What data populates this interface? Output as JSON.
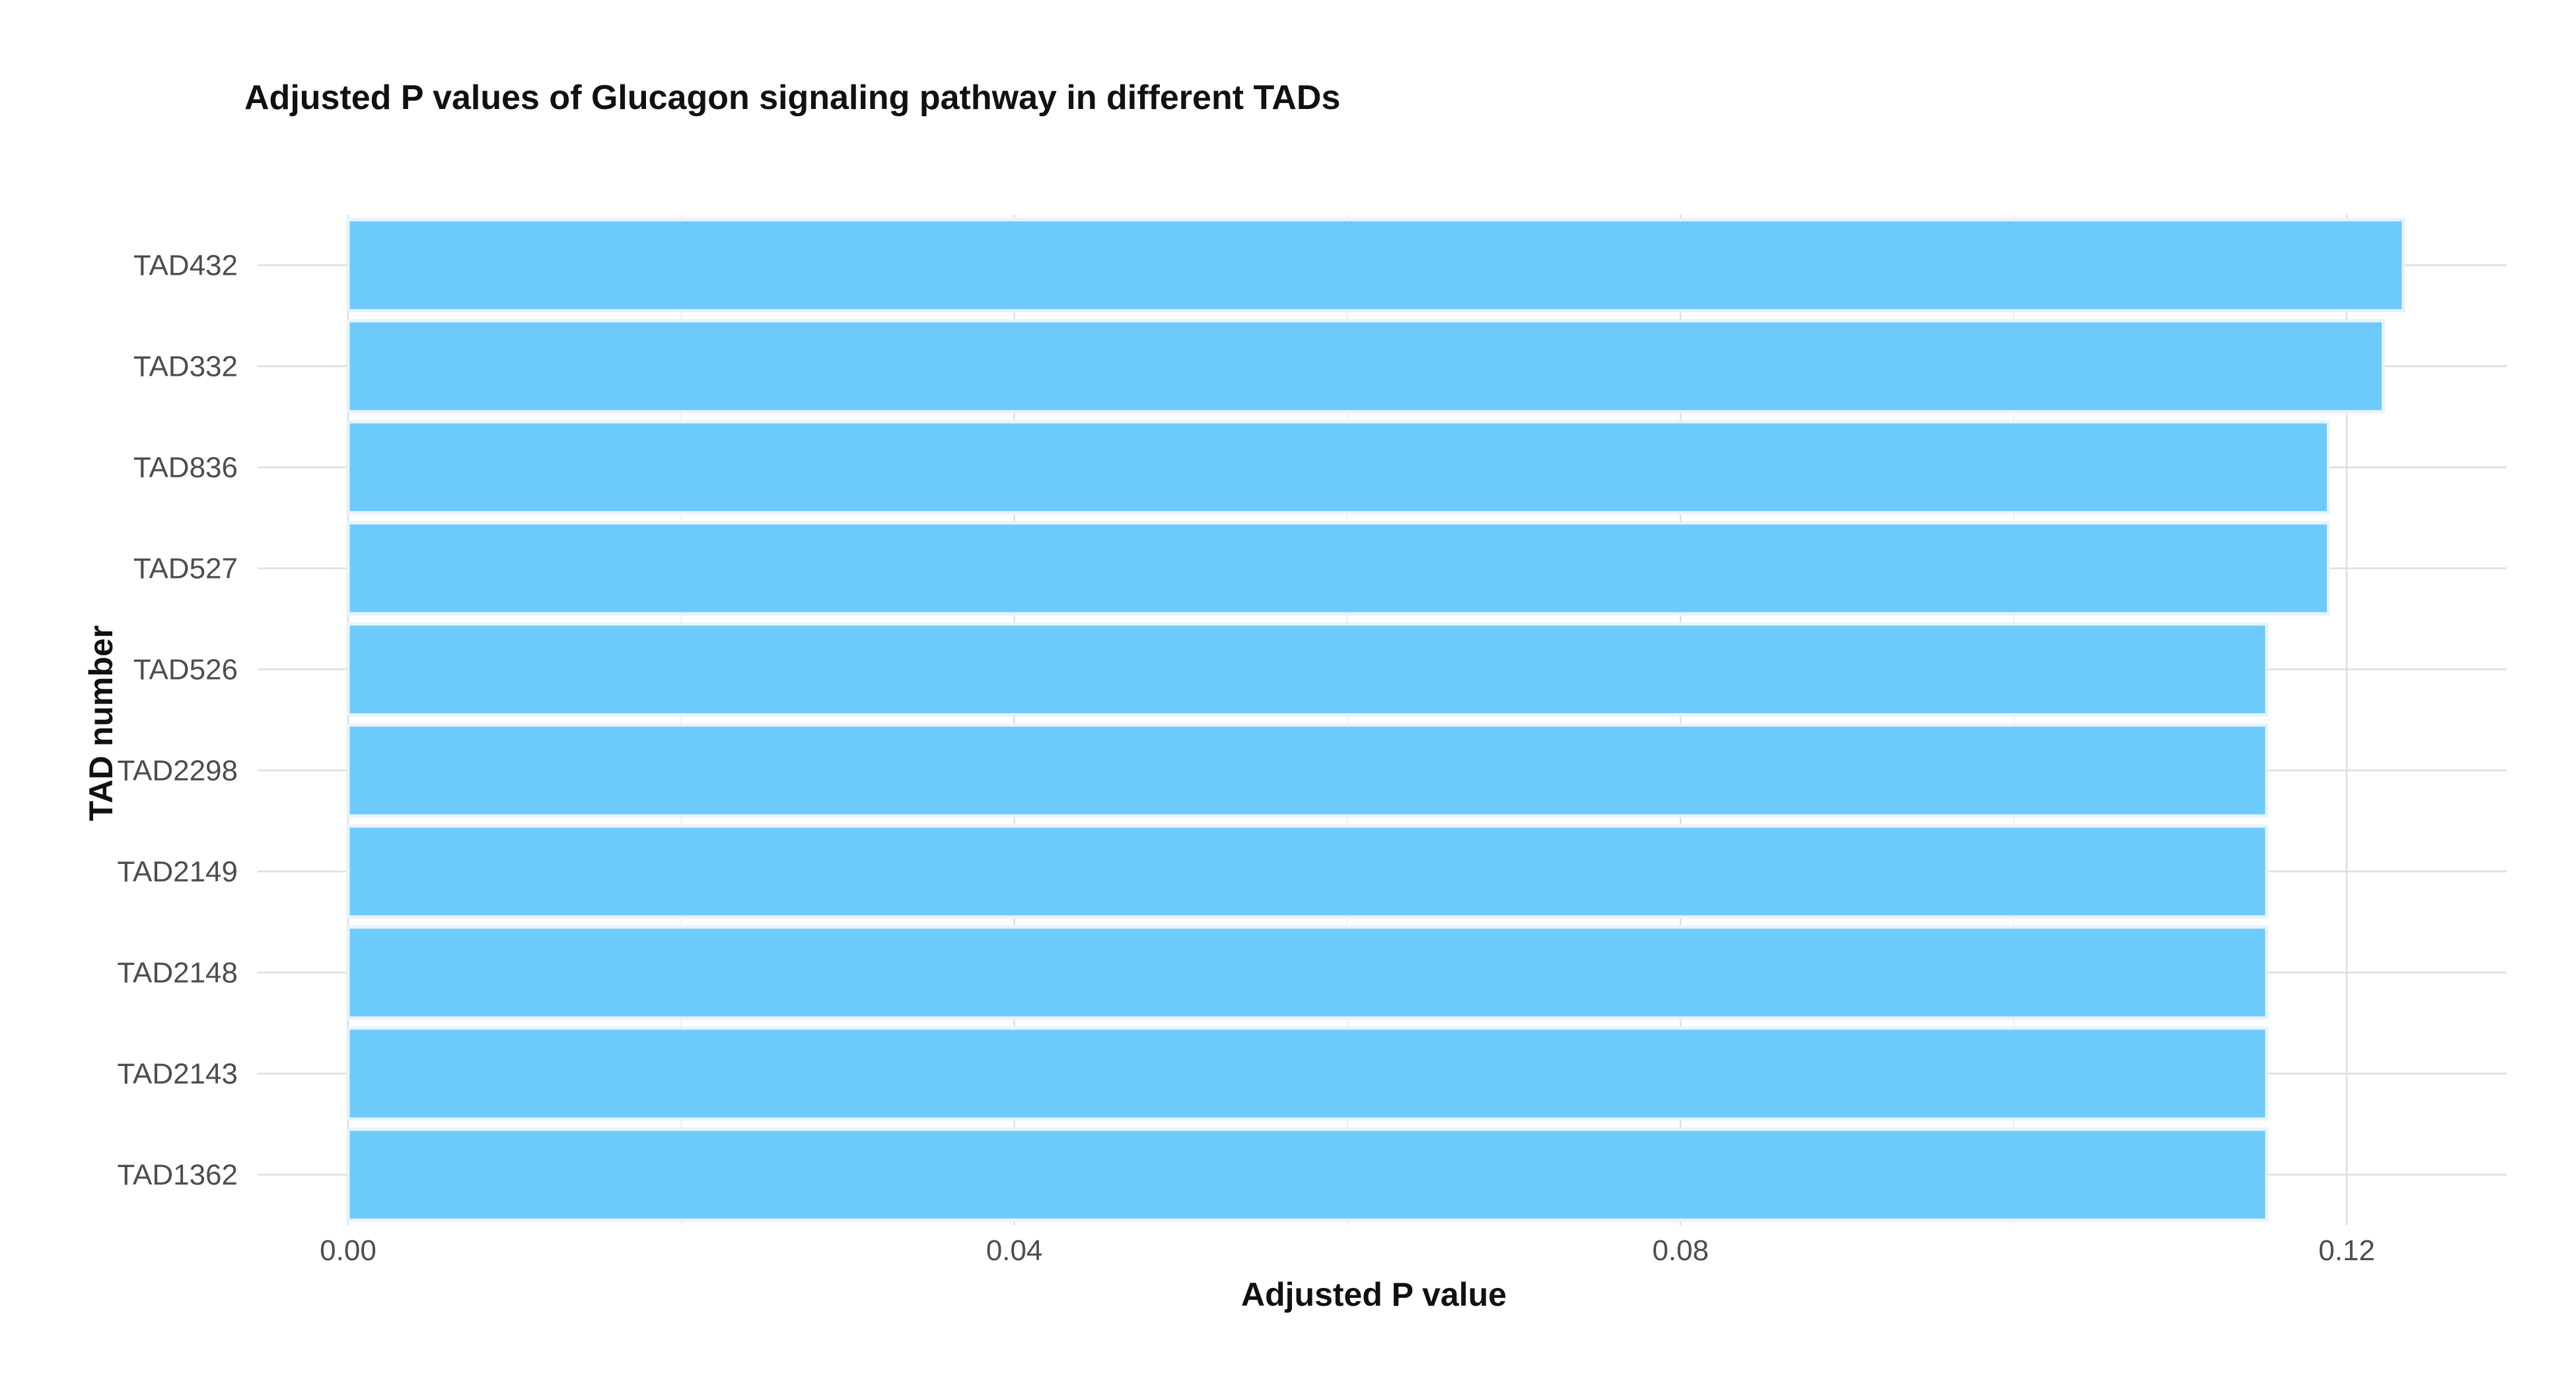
{
  "chart_data": {
    "type": "bar",
    "orientation": "horizontal",
    "title": "Adjusted P values of Glucagon signaling pathway in different TADs",
    "xlabel": "Adjusted P value",
    "ylabel": "TAD number",
    "categories": [
      "TAD432",
      "TAD332",
      "TAD836",
      "TAD527",
      "TAD526",
      "TAD2298",
      "TAD2149",
      "TAD2148",
      "TAD2143",
      "TAD1362"
    ],
    "values": [
      0.1234,
      0.1222,
      0.1189,
      0.1189,
      0.1152,
      0.1152,
      0.1152,
      0.1152,
      0.1152,
      0.1152
    ],
    "xlim": [
      0,
      0.1296
    ],
    "xticks": [
      0.0,
      0.04,
      0.08,
      0.12
    ],
    "xtick_labels": [
      "0.00",
      "0.04",
      "0.08",
      "0.12"
    ],
    "grid": true,
    "legend": "none",
    "bar_color": "#6ccbfb"
  }
}
